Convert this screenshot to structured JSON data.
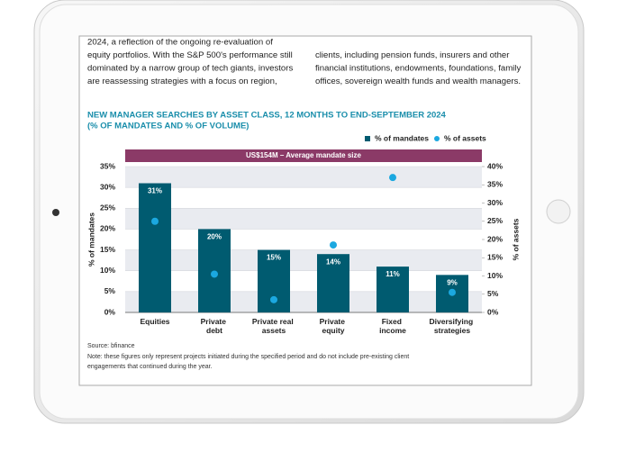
{
  "body_text": {
    "left": [
      "2024, a reflection of the ongoing re-evaluation of",
      "equity portfolios. With the S&P 500's performance still",
      "dominated by a narrow group of tech giants, investors",
      "are reassessing strategies with a focus on region,"
    ],
    "right": [
      "clients, including pension funds, insurers and other",
      "financial institutions, endowments, foundations, family",
      "offices, sovereign wealth funds and wealth managers."
    ]
  },
  "chart_data": {
    "type": "bar",
    "title": "NEW MANAGER SEARCHES BY ASSET CLASS, 12 MONTHS TO END-SEPTEMBER 2024",
    "subtitle": "(% OF MANDATES AND % OF VOLUME)",
    "banner": "US$154M – Average mandate size",
    "banner_color": "#8b3a67",
    "categories": [
      "Equities",
      "Private debt",
      "Private real assets",
      "Private equity",
      "Fixed income",
      "Diversifying strategies"
    ],
    "series": [
      {
        "name": "% of mandates",
        "color": "#005b70",
        "values": [
          31,
          20,
          15,
          14,
          11,
          9
        ],
        "value_labels": [
          "31%",
          "20%",
          "15%",
          "14%",
          "11%",
          "9%"
        ]
      },
      {
        "name": "% of assets",
        "color": "#1ba8e0",
        "type": "scatter",
        "axis": "y2",
        "values": [
          25,
          10.5,
          3.5,
          18.5,
          37,
          5.5
        ]
      }
    ],
    "y_label": "% of mandates",
    "y2_label": "% of assets",
    "ylim": [
      0,
      35
    ],
    "yticks": [
      {
        "value": 0,
        "label": "0%"
      },
      {
        "value": 5,
        "label": "5%"
      },
      {
        "value": 10,
        "label": "10%"
      },
      {
        "value": 15,
        "label": "15%"
      },
      {
        "value": 20,
        "label": "20%"
      },
      {
        "value": 25,
        "label": "25%"
      },
      {
        "value": 30,
        "label": "30%"
      },
      {
        "value": 35,
        "label": "35%"
      }
    ],
    "y2lim": [
      0,
      40
    ],
    "y2ticks": [
      {
        "value": 0,
        "label": "0%"
      },
      {
        "value": 5,
        "label": "5%"
      },
      {
        "value": 10,
        "label": "10%"
      },
      {
        "value": 15,
        "label": "15%"
      },
      {
        "value": 20,
        "label": "20%"
      },
      {
        "value": 25,
        "label": "25%"
      },
      {
        "value": 30,
        "label": "30%"
      },
      {
        "value": 35,
        "label": "35%"
      },
      {
        "value": 40,
        "label": "40%"
      }
    ],
    "grid": true,
    "legend": "top-right",
    "title_color": "#1a8eab",
    "source": "Source: bfinance",
    "note": [
      "Note: these figures only represent projects initiated during the specified period and do not include pre-existing client",
      "engagements that continued during the year."
    ]
  }
}
